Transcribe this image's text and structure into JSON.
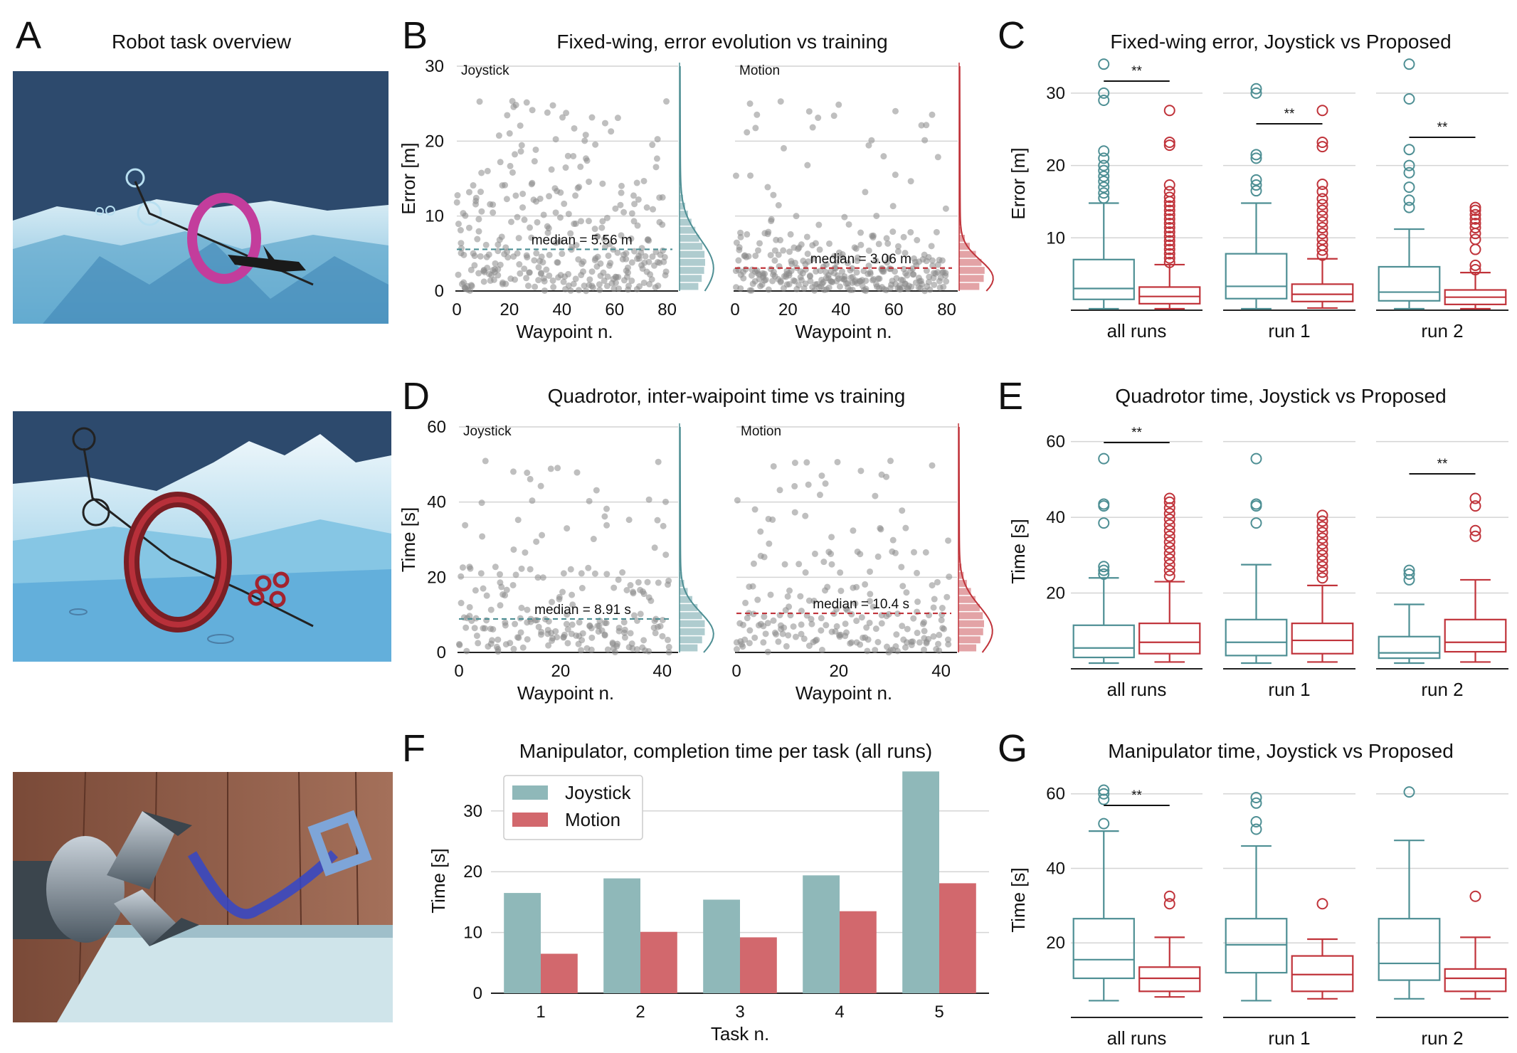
{
  "panels": {
    "A": {
      "letter": "A",
      "title": "Robot task overview"
    },
    "B": {
      "letter": "B",
      "title": "Fixed-wing, error evolution vs training"
    },
    "C": {
      "letter": "C",
      "title": "Fixed-wing error, Joystick vs Proposed"
    },
    "D": {
      "letter": "D",
      "title": "Quadrotor, inter-waipoint time vs training"
    },
    "E": {
      "letter": "E",
      "title": "Quadrotor time, Joystick vs Proposed"
    },
    "F": {
      "letter": "F",
      "title": "Manipulator, completion time per task (all runs)"
    },
    "G": {
      "letter": "G",
      "title": "Manipulator time, Joystick vs Proposed"
    }
  },
  "colors": {
    "joystick": "#4e8f94",
    "motion": "#c0333a",
    "joystick_bar": "#8fb8b9",
    "motion_bar": "#d2686d",
    "points": "#8a8a8a"
  },
  "images": [
    "fixed-wing-scene",
    "quadrotor-scene",
    "manipulator-scene"
  ],
  "chart_data": [
    {
      "id": "B",
      "type": "scatter",
      "title": "Fixed-wing, error evolution vs training",
      "xlabel": "Waypoint n.",
      "ylabel": "Error [m]",
      "xlim": [
        0,
        82
      ],
      "ylim": [
        0,
        30
      ],
      "xticks": [
        "0",
        "20",
        "40",
        "60",
        "80"
      ],
      "yticks": [
        "0",
        "10",
        "20",
        "30"
      ],
      "series": [
        {
          "name": "Joystick",
          "n_points": 80,
          "median": 5.56,
          "median_label": "median = 5.56 m"
        },
        {
          "name": "Motion",
          "n_points": 80,
          "median": 3.06,
          "median_label": "median = 3.06 m"
        }
      ]
    },
    {
      "id": "C",
      "type": "box",
      "title": "Fixed-wing error, Joystick vs Proposed",
      "ylabel": "Error [m]",
      "ylim": [
        0,
        35
      ],
      "yticks": [
        "10",
        "20",
        "30"
      ],
      "groups": [
        {
          "label": "all runs",
          "sig": "**",
          "joystick": {
            "whisker_lo": 0.2,
            "q1": 1.5,
            "median": 3.0,
            "q3": 7.0,
            "whisker_hi": 14.8,
            "outliers": [
              15.5,
              16.2,
              17,
              17.8,
              18.5,
              19.3,
              20,
              21,
              22,
              29,
              30,
              34
            ]
          },
          "motion": {
            "whisker_lo": 0.2,
            "q1": 0.9,
            "median": 1.9,
            "q3": 3.2,
            "whisker_hi": 6.3,
            "outliers": [
              6.6,
              7.2,
              7.8,
              8.4,
              9,
              9.6,
              10.2,
              10.8,
              11.4,
              12,
              12.6,
              13.2,
              13.8,
              14.4,
              15,
              15.6,
              16.4,
              17.3,
              22.8,
              23.2,
              27.6
            ]
          }
        },
        {
          "label": "run 1",
          "sig": "**",
          "joystick": {
            "whisker_lo": 0.2,
            "q1": 1.6,
            "median": 3.3,
            "q3": 7.8,
            "whisker_hi": 14.8,
            "outliers": [
              16.5,
              17.3,
              18,
              21,
              21.5,
              30,
              30.6
            ]
          },
          "motion": {
            "whisker_lo": 0.3,
            "q1": 1.2,
            "median": 2.2,
            "q3": 3.6,
            "whisker_hi": 7.1,
            "outliers": [
              7.6,
              8.3,
              9,
              9.8,
              10.6,
              11.4,
              12.2,
              13,
              13.8,
              14.6,
              15.4,
              16.4,
              17.4,
              22.6,
              23.2,
              27.6
            ]
          }
        },
        {
          "label": "run 2",
          "sig": "**",
          "joystick": {
            "whisker_lo": 0.2,
            "q1": 1.3,
            "median": 2.5,
            "q3": 6.0,
            "whisker_hi": 11.2,
            "outliers": [
              14.2,
              15.2,
              17,
              19,
              20,
              22.2,
              29.2,
              34
            ]
          },
          "motion": {
            "whisker_lo": 0.2,
            "q1": 0.8,
            "median": 1.8,
            "q3": 2.8,
            "whisker_hi": 5.2,
            "outliers": [
              5.6,
              6.2,
              8.4,
              9.8,
              10.6,
              11.4,
              12,
              12.6,
              13.2,
              13.8,
              14.2
            ]
          }
        }
      ]
    },
    {
      "id": "D",
      "type": "scatter",
      "title": "Quadrotor, inter-waipoint time vs training",
      "xlabel": "Waypoint n.",
      "ylabel": "Time [s]",
      "xlim": [
        0,
        42
      ],
      "ylim": [
        0,
        60
      ],
      "xticks": [
        "0",
        "20",
        "40"
      ],
      "yticks": [
        "0",
        "20",
        "40",
        "60"
      ],
      "series": [
        {
          "name": "Joystick",
          "n_points": 42,
          "median": 8.91,
          "median_label": "median = 8.91 s"
        },
        {
          "name": "Motion",
          "n_points": 42,
          "median": 10.4,
          "median_label": "median = 10.4 s"
        }
      ]
    },
    {
      "id": "E",
      "type": "box",
      "title": "Quadrotor time, Joystick vs Proposed",
      "ylabel": "Time [s]",
      "ylim": [
        0,
        62
      ],
      "yticks": [
        "20",
        "40",
        "60"
      ],
      "groups": [
        {
          "label": "all runs",
          "sig": "**",
          "joystick": {
            "whisker_lo": 1.5,
            "q1": 3.0,
            "median": 5.5,
            "q3": 11.5,
            "whisker_hi": 24,
            "outliers": [
              25,
              26,
              27,
              38.5,
              43,
              43.5,
              55.5
            ]
          },
          "motion": {
            "whisker_lo": 1.8,
            "q1": 4.0,
            "median": 7.0,
            "q3": 12.0,
            "whisker_hi": 23,
            "outliers": [
              24.5,
              26,
              27.5,
              29,
              30.5,
              32,
              33.5,
              35,
              36.5,
              38,
              39.5,
              41,
              42.5,
              44,
              45
            ]
          }
        },
        {
          "label": "run 1",
          "sig": "",
          "joystick": {
            "whisker_lo": 1.5,
            "q1": 3.5,
            "median": 7.0,
            "q3": 13.0,
            "whisker_hi": 27.5,
            "outliers": [
              38.5,
              43,
              43.5,
              55.5
            ]
          },
          "motion": {
            "whisker_lo": 1.8,
            "q1": 4.0,
            "median": 7.5,
            "q3": 12.0,
            "whisker_hi": 22,
            "outliers": [
              24,
              25.5,
              27,
              28.5,
              30,
              31.5,
              33,
              34.5,
              36,
              37.5,
              39,
              40.5
            ]
          }
        },
        {
          "label": "run 2",
          "sig": "**",
          "joystick": {
            "whisker_lo": 1.5,
            "q1": 2.8,
            "median": 4.2,
            "q3": 8.5,
            "whisker_hi": 17,
            "outliers": [
              23.5,
              25,
              26
            ]
          },
          "motion": {
            "whisker_lo": 1.8,
            "q1": 4.5,
            "median": 7.0,
            "q3": 13.0,
            "whisker_hi": 23.5,
            "outliers": [
              35,
              36.5,
              43,
              45
            ]
          }
        }
      ]
    },
    {
      "id": "F",
      "type": "bar",
      "title": "Manipulator, completion time per task (all runs)",
      "xlabel": "Task n.",
      "ylabel": "Time [s]",
      "categories": [
        "1",
        "2",
        "3",
        "4",
        "5"
      ],
      "ylim": [
        0,
        37
      ],
      "yticks": [
        "0",
        "10",
        "20",
        "30"
      ],
      "legend": "top-left",
      "series": [
        {
          "name": "Joystick",
          "values": [
            16.5,
            18.9,
            15.4,
            19.4,
            36.5
          ]
        },
        {
          "name": "Motion",
          "values": [
            6.5,
            10.1,
            9.2,
            13.5,
            18.1
          ]
        }
      ]
    },
    {
      "id": "G",
      "type": "box",
      "title": "Manipulator time, Joystick vs Proposed",
      "ylabel": "Time [s]",
      "ylim": [
        0,
        63
      ],
      "yticks": [
        "20",
        "40",
        "60"
      ],
      "groups": [
        {
          "label": "all runs",
          "sig": "**",
          "joystick": {
            "whisker_lo": 4.5,
            "q1": 10.5,
            "median": 15.5,
            "q3": 26.5,
            "whisker_hi": 50,
            "outliers": [
              52,
              58.5,
              60,
              61
            ]
          },
          "motion": {
            "whisker_lo": 5.5,
            "q1": 7.0,
            "median": 10.5,
            "q3": 13.5,
            "whisker_hi": 21.5,
            "outliers": [
              30.5,
              32.5
            ]
          }
        },
        {
          "label": "run 1",
          "sig": "",
          "joystick": {
            "whisker_lo": 4.5,
            "q1": 12.0,
            "median": 19.5,
            "q3": 26.5,
            "whisker_hi": 46,
            "outliers": [
              50.5,
              52.5,
              57.5,
              59
            ]
          },
          "motion": {
            "whisker_lo": 5.0,
            "q1": 7.0,
            "median": 11.5,
            "q3": 16.5,
            "whisker_hi": 21,
            "outliers": [
              30.5
            ]
          }
        },
        {
          "label": "run 2",
          "sig": "",
          "joystick": {
            "whisker_lo": 5.0,
            "q1": 10.0,
            "median": 14.5,
            "q3": 26.5,
            "whisker_hi": 47.5,
            "outliers": [
              60.5
            ]
          },
          "motion": {
            "whisker_lo": 5.0,
            "q1": 7.0,
            "median": 10.5,
            "q3": 13.0,
            "whisker_hi": 21.5,
            "outliers": [
              32.5
            ]
          }
        }
      ]
    }
  ]
}
